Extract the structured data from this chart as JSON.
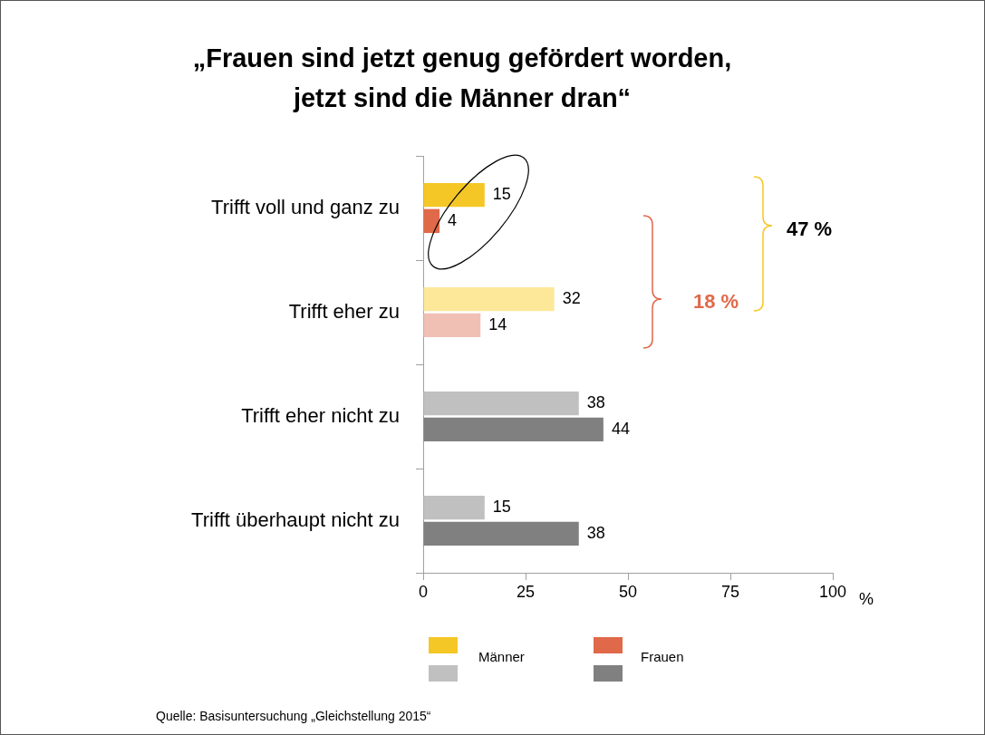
{
  "chart_data": {
    "type": "bar",
    "orientation": "horizontal",
    "title": "„Frauen sind jetzt genug gefördert worden,\njetzt sind die Männer dran“",
    "categories": [
      "Trifft voll und ganz zu",
      "Trifft eher zu",
      "Trifft eher nicht zu",
      "Trifft überhaupt nicht zu"
    ],
    "series": [
      {
        "name": "Männer",
        "color": "#f5c726",
        "colors": [
          "#f5c726",
          "#fde89a",
          "#c0c0c0",
          "#c0c0c0"
        ],
        "values": [
          15,
          32,
          38,
          15
        ]
      },
      {
        "name": "Frauen",
        "color": "#e0694a",
        "colors": [
          "#e0694a",
          "#f0c0b5",
          "#808080",
          "#808080"
        ],
        "values": [
          4,
          14,
          44,
          38
        ]
      }
    ],
    "xlim": [
      0,
      100
    ],
    "xticks": [
      0,
      25,
      50,
      75,
      100
    ],
    "xlabel": "%",
    "data_labels": true,
    "grid": false,
    "legend": "bottom",
    "annotations": [
      "47 %",
      "18 %",
      "Quelle: Basisuntersuchung „Gleichstellung 2015“"
    ]
  }
}
